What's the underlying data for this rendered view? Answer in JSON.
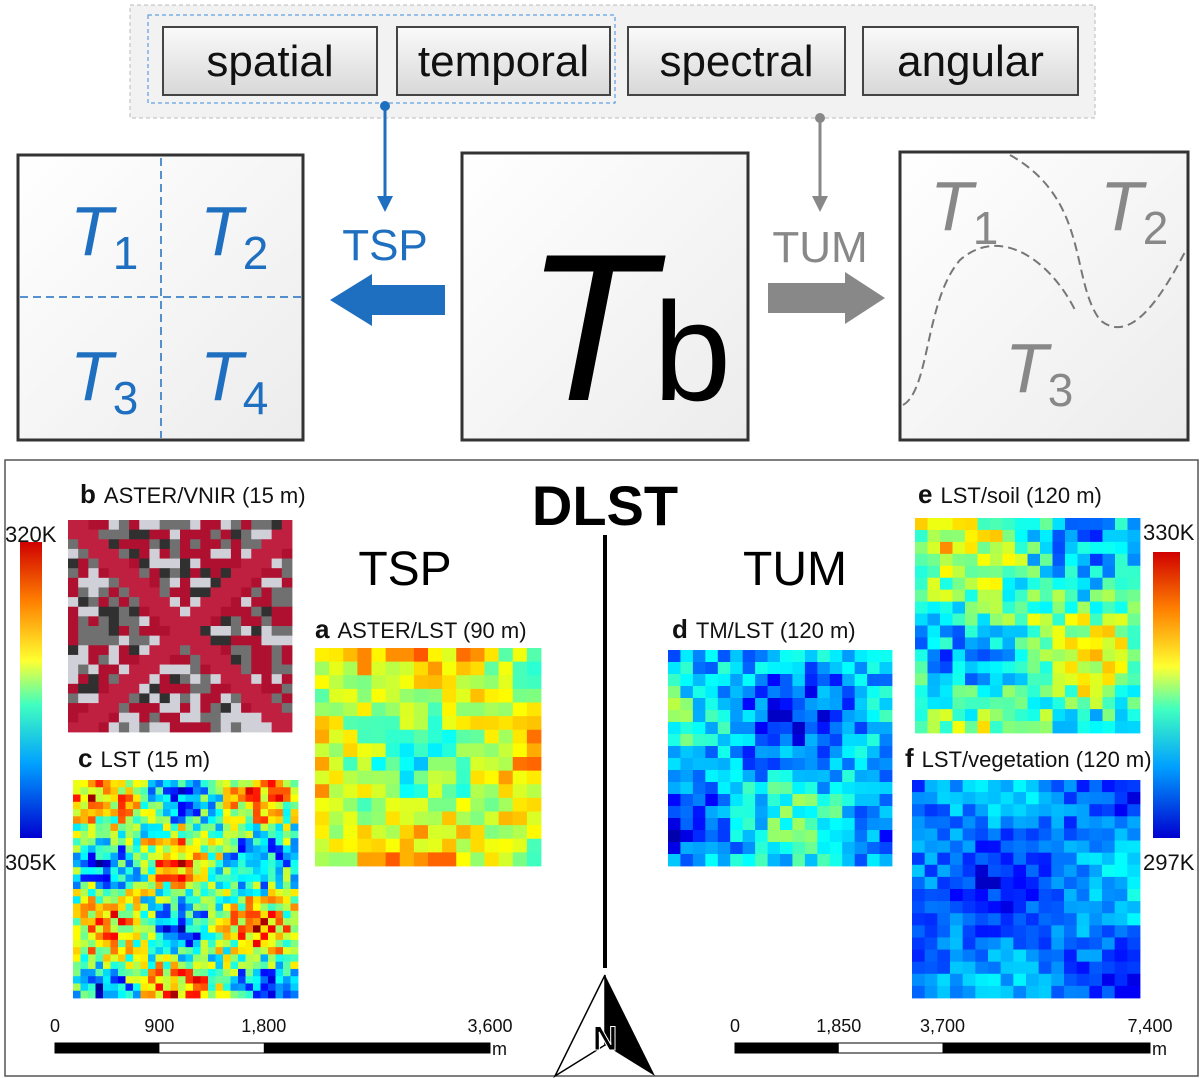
{
  "buttons": [
    "spatial",
    "temporal",
    "spectral",
    "angular"
  ],
  "left_box": {
    "cells": [
      {
        "base": "T",
        "sub": "1"
      },
      {
        "base": "T",
        "sub": "2"
      },
      {
        "base": "T",
        "sub": "3"
      },
      {
        "base": "T",
        "sub": "4"
      }
    ]
  },
  "tsp_label": "TSP",
  "tum_label": "TUM",
  "center": {
    "base": "T",
    "sub": "b"
  },
  "right_box": {
    "cells": [
      {
        "base": "T",
        "sub": "1"
      },
      {
        "base": "T",
        "sub": "2"
      },
      {
        "base": "T",
        "sub": "3"
      }
    ]
  },
  "bottom": {
    "title": "DLST",
    "left_heading": "TSP",
    "right_heading": "TUM",
    "panels": [
      {
        "letter": "b",
        "label": "ASTER/VNIR (15 m)"
      },
      {
        "letter": "c",
        "label": "LST (15 m)"
      },
      {
        "letter": "a",
        "label": "ASTER/LST (90 m)"
      },
      {
        "letter": "d",
        "label": "TM/LST (120 m)"
      },
      {
        "letter": "e",
        "label": "LST/soil (120 m)"
      },
      {
        "letter": "f",
        "label": "LST/vegetation (120 m)"
      }
    ],
    "left_colorbar": {
      "max": "320K",
      "min": "305K"
    },
    "right_colorbar": {
      "max": "330K",
      "min": "297K"
    },
    "left_scale": {
      "ticks": [
        "0",
        "900",
        "1,800",
        "3,600"
      ],
      "unit": "m"
    },
    "right_scale": {
      "ticks": [
        "0",
        "1,850",
        "3,700",
        "7,400"
      ],
      "unit": "m"
    },
    "north": "N"
  }
}
